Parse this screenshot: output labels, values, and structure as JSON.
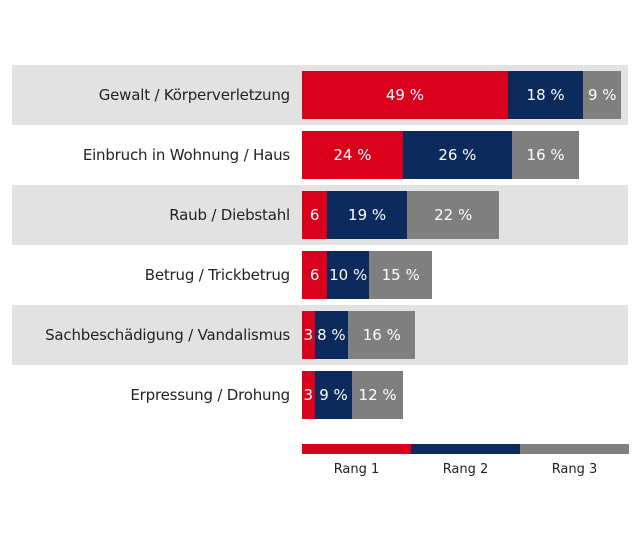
{
  "chart_data": {
    "type": "bar",
    "orientation": "horizontal",
    "stacked": true,
    "categories": [
      "Gewalt / Körperverletzung",
      "Einbruch in Wohnung / Haus",
      "Raub / Diebstahl",
      "Betrug / Trickbetrug",
      "Sachbeschädigung / Vandalismus",
      "Erpressung / Drohung"
    ],
    "series": [
      {
        "name": "Rang 1",
        "color": "#d9001b",
        "values": [
          49,
          24,
          6,
          6,
          3,
          3
        ],
        "labels": [
          "49 %",
          "24 %",
          "6",
          "6",
          "3",
          "3"
        ]
      },
      {
        "name": "Rang 2",
        "color": "#0c2a5b",
        "values": [
          18,
          26,
          19,
          10,
          8,
          9
        ],
        "labels": [
          "18 %",
          "26 %",
          "19 %",
          "10 %",
          "8 %",
          "9 %"
        ]
      },
      {
        "name": "Rang 3",
        "color": "#7f7f7f",
        "values": [
          9,
          16,
          22,
          15,
          16,
          12
        ],
        "labels": [
          "9 %",
          "16 %",
          "22 %",
          "15 %",
          "16 %",
          "12 %"
        ]
      }
    ],
    "xlim": [
      0,
      76
    ],
    "grid": false,
    "legend_position": "bottom",
    "band_color": "#e2e2e2"
  }
}
